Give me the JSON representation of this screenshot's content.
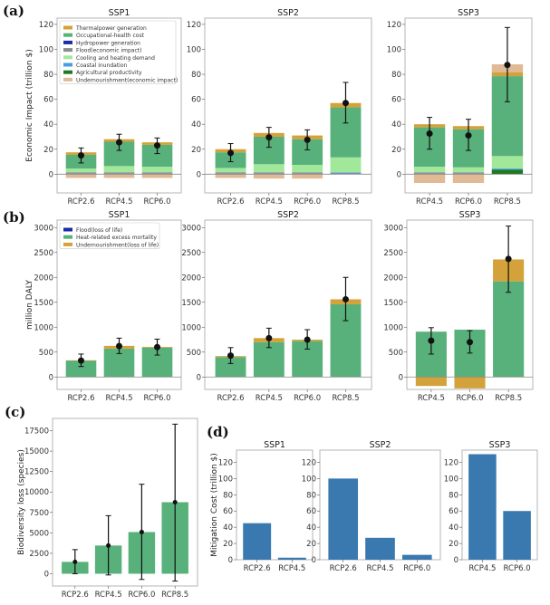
{
  "figure": {
    "panel_labels": [
      "(a)",
      "(b)",
      "(c)",
      "(d)"
    ]
  },
  "colors": {
    "thermal": "#d4a23a",
    "occupational": "#58b07a",
    "hydro": "#1c2aa8",
    "flood_econ": "#8a8a8a",
    "cooling": "#a2e89a",
    "coastal": "#4a9be0",
    "agri": "#1f7a1f",
    "undernourish_econ": "#e0b995",
    "flood_life": "#1c2aa8",
    "heat": "#58b07a",
    "undernourish_life": "#d4a23a",
    "biodiversity": "#58b07a",
    "mitigation": "#3a78b0",
    "errorbar": "#111111"
  },
  "chart_data": [
    {
      "id": "a",
      "type": "bar",
      "stacked": true,
      "ylabel": "Economic Impact (trillion $)",
      "ylim": [
        -15,
        125
      ],
      "yticks": [
        0,
        20,
        40,
        60,
        80,
        100,
        120
      ],
      "legend": {
        "placement": "top-left",
        "entries": [
          {
            "label": "Thermalpower generation",
            "color_key": "thermal"
          },
          {
            "label": "Occupational-health cost",
            "color_key": "occupational"
          },
          {
            "label": "Hydropower generation",
            "color_key": "hydro"
          },
          {
            "label": "Flood(economic impact)",
            "color_key": "flood_econ"
          },
          {
            "label": "Cooling and heating demand",
            "color_key": "cooling"
          },
          {
            "label": "Coastal inundation",
            "color_key": "coastal"
          },
          {
            "label": "Agricultural productivity",
            "color_key": "agri"
          },
          {
            "label": "Undernourishment(economic impact)",
            "color_key": "undernourish_econ"
          }
        ]
      },
      "subplots": [
        {
          "title": "SSP1",
          "categories": [
            "RCP2.6",
            "RCP4.5",
            "RCP6.0"
          ],
          "series": [
            {
              "name": "Agricultural productivity",
              "color_key": "agri",
              "values": [
                0,
                0,
                0
              ]
            },
            {
              "name": "Coastal inundation",
              "color_key": "coastal",
              "values": [
                0.5,
                0.5,
                0.5
              ]
            },
            {
              "name": "Flood(economic impact)",
              "color_key": "flood_econ",
              "values": [
                1,
                1,
                1
              ]
            },
            {
              "name": "Cooling and heating demand",
              "color_key": "cooling",
              "values": [
                3,
                5,
                4.5
              ]
            },
            {
              "name": "Occupational-health cost",
              "color_key": "occupational",
              "values": [
                11,
                19.5,
                17.5
              ]
            },
            {
              "name": "Thermalpower generation",
              "color_key": "thermal",
              "values": [
                2,
                2,
                2
              ]
            },
            {
              "name": "Undernourishment(economic impact)",
              "color_key": "undernourish_econ",
              "values": [
                -3,
                -3,
                -3
              ]
            }
          ],
          "mean": [
            15,
            25.5,
            23
          ],
          "err_low": [
            9,
            19,
            16.5
          ],
          "err_high": [
            21,
            32,
            29
          ]
        },
        {
          "title": "SSP2",
          "categories": [
            "RCP2.6",
            "RCP4.5",
            "RCP6.0",
            "RCP8.5"
          ],
          "series": [
            {
              "name": "Agricultural productivity",
              "color_key": "agri",
              "values": [
                0,
                0,
                0,
                0
              ]
            },
            {
              "name": "Coastal inundation",
              "color_key": "coastal",
              "values": [
                0.5,
                0.5,
                0.5,
                1
              ]
            },
            {
              "name": "Flood(economic impact)",
              "color_key": "flood_econ",
              "values": [
                1,
                1,
                1,
                0.5
              ]
            },
            {
              "name": "Cooling and heating demand",
              "color_key": "cooling",
              "values": [
                3.5,
                6.5,
                6,
                12
              ]
            },
            {
              "name": "Occupational-health cost",
              "color_key": "occupational",
              "values": [
                12.5,
                22,
                20.5,
                40
              ]
            },
            {
              "name": "Thermalpower generation",
              "color_key": "thermal",
              "values": [
                2.5,
                3,
                3,
                3.5
              ]
            },
            {
              "name": "Undernourishment(economic impact)",
              "color_key": "undernourish_econ",
              "values": [
                -3,
                -3.5,
                -3.5,
                0
              ]
            }
          ],
          "mean": [
            17,
            29.5,
            27.5,
            57
          ],
          "err_low": [
            10,
            21.5,
            19.5,
            41
          ],
          "err_high": [
            24.5,
            37.5,
            35.5,
            73.5
          ]
        },
        {
          "title": "SSP3",
          "categories": [
            "RCP4.5",
            "RCP6.0",
            "RCP8.5"
          ],
          "series": [
            {
              "name": "Agricultural productivity",
              "color_key": "agri",
              "values": [
                0,
                0,
                3.5
              ]
            },
            {
              "name": "Coastal inundation",
              "color_key": "coastal",
              "values": [
                0.5,
                0.5,
                1
              ]
            },
            {
              "name": "Flood(economic impact)",
              "color_key": "flood_econ",
              "values": [
                1,
                1,
                0
              ]
            },
            {
              "name": "Cooling and heating demand",
              "color_key": "cooling",
              "values": [
                4.5,
                4,
                10
              ]
            },
            {
              "name": "Occupational-health cost",
              "color_key": "occupational",
              "values": [
                31.5,
                30.5,
                64
              ]
            },
            {
              "name": "Thermalpower generation",
              "color_key": "thermal",
              "values": [
                2.5,
                2.5,
                3
              ]
            },
            {
              "name": "Undernourishment(economic impact)",
              "color_key": "undernourish_econ",
              "values": [
                -7,
                -7,
                6.5
              ]
            }
          ],
          "mean": [
            32.5,
            31,
            87.5
          ],
          "err_low": [
            20,
            19,
            58
          ],
          "err_high": [
            45.5,
            44,
            117.5
          ]
        }
      ]
    },
    {
      "id": "b",
      "type": "bar",
      "stacked": true,
      "ylabel": "million DALY",
      "ylim": [
        -250,
        3150
      ],
      "yticks": [
        0,
        500,
        1000,
        1500,
        2000,
        2500,
        3000
      ],
      "legend": {
        "placement": "top-left",
        "entries": [
          {
            "label": "Flood(loss of life)",
            "color_key": "flood_life"
          },
          {
            "label": "Heat-related excess mortality",
            "color_key": "heat"
          },
          {
            "label": "Undernourishment(loss of life)",
            "color_key": "undernourish_life"
          }
        ]
      },
      "subplots": [
        {
          "title": "SSP1",
          "categories": [
            "RCP2.6",
            "RCP4.5",
            "RCP6.0"
          ],
          "series": [
            {
              "name": "Flood(loss of life)",
              "color_key": "flood_life",
              "values": [
                0,
                0,
                0
              ]
            },
            {
              "name": "Heat-related excess mortality",
              "color_key": "heat",
              "values": [
                330,
                570,
                590
              ]
            },
            {
              "name": "Undernourishment(loss of life)",
              "color_key": "undernourish_life",
              "values": [
                5,
                55,
                15
              ]
            }
          ],
          "mean": [
            330,
            620,
            600
          ],
          "err_low": [
            210,
            470,
            440
          ],
          "err_high": [
            460,
            780,
            760
          ]
        },
        {
          "title": "SSP2",
          "categories": [
            "RCP2.6",
            "RCP4.5",
            "RCP6.0",
            "RCP8.5"
          ],
          "series": [
            {
              "name": "Flood(loss of life)",
              "color_key": "flood_life",
              "values": [
                0,
                0,
                0,
                0
              ]
            },
            {
              "name": "Heat-related excess mortality",
              "color_key": "heat",
              "values": [
                400,
                700,
                720,
                1460
              ]
            },
            {
              "name": "Undernourishment(loss of life)",
              "color_key": "undernourish_life",
              "values": [
                20,
                80,
                30,
                100
              ]
            }
          ],
          "mean": [
            430,
            780,
            750,
            1560
          ],
          "err_low": [
            270,
            590,
            560,
            1130
          ],
          "err_high": [
            590,
            980,
            950,
            2000
          ]
        },
        {
          "title": "SSP3",
          "categories": [
            "RCP4.5",
            "RCP6.0",
            "RCP8.5"
          ],
          "series": [
            {
              "name": "Flood(loss of life)",
              "color_key": "flood_life",
              "values": [
                0,
                0,
                0
              ]
            },
            {
              "name": "Heat-related excess mortality",
              "color_key": "heat",
              "values": [
                910,
                950,
                1920
              ]
            },
            {
              "name": "Undernourishment(loss of life)",
              "color_key": "undernourish_life",
              "values": [
                -180,
                -230,
                440
              ]
            }
          ],
          "mean": [
            730,
            700,
            2370
          ],
          "err_low": [
            460,
            480,
            1700
          ],
          "err_high": [
            990,
            930,
            3030
          ]
        }
      ]
    },
    {
      "id": "c",
      "type": "bar",
      "ylabel": "Biodiversity loss (species)",
      "ylim": [
        -1500,
        19000
      ],
      "yticks": [
        0,
        2500,
        5000,
        7500,
        10000,
        12500,
        15000,
        17500
      ],
      "categories": [
        "RCP2.6",
        "RCP4.5",
        "RCP6.0",
        "RCP8.5"
      ],
      "values": [
        1450,
        3450,
        5100,
        8750
      ],
      "mean": [
        1450,
        3450,
        5100,
        8750
      ],
      "err_low": [
        0,
        -150,
        -700,
        -900
      ],
      "err_high": [
        2950,
        7100,
        10950,
        18300
      ]
    },
    {
      "id": "d",
      "type": "bar",
      "ylabel": "Mitigation Cost (trillion $)",
      "ylim": [
        0,
        135
      ],
      "yticks": [
        0,
        20,
        40,
        60,
        80,
        100,
        120
      ],
      "subplots": [
        {
          "title": "SSP1",
          "categories": [
            "RCP2.6",
            "RCP4.5"
          ],
          "values": [
            45,
            2.5
          ]
        },
        {
          "title": "SSP2",
          "categories": [
            "RCP2.6",
            "RCP4.5",
            "RCP6.0"
          ],
          "values": [
            100,
            27,
            6
          ]
        },
        {
          "title": "SSP3",
          "categories": [
            "RCP4.5",
            "RCP6.0"
          ],
          "values": [
            130,
            60
          ]
        }
      ]
    }
  ]
}
